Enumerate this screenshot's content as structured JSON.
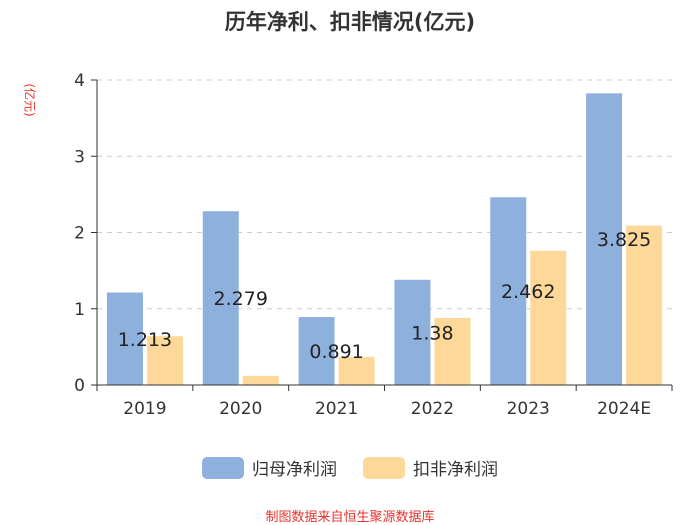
{
  "chart_data": {
    "type": "bar",
    "title": "历年净利、扣非情况(亿元)",
    "ylabel": "(亿元)",
    "xlabel": "",
    "categories": [
      "2019",
      "2020",
      "2021",
      "2022",
      "2023",
      "2024E"
    ],
    "ylim": [
      0,
      4
    ],
    "yticks": [
      0,
      1,
      2,
      3,
      4
    ],
    "grid": true,
    "legend_position": "bottom",
    "series": [
      {
        "name": "归母净利润",
        "color": "#8eb0dd",
        "values": [
          1.213,
          2.279,
          0.891,
          1.38,
          2.462,
          3.825
        ],
        "labels": [
          "1.213",
          "2.279",
          "0.891",
          "1.38",
          "2.462",
          "3.825"
        ]
      },
      {
        "name": "扣非净利润",
        "color": "#fdd899",
        "values": [
          0.64,
          0.12,
          0.37,
          0.88,
          1.76,
          2.09
        ]
      }
    ]
  },
  "source": "制图数据来自恒生聚源数据库"
}
